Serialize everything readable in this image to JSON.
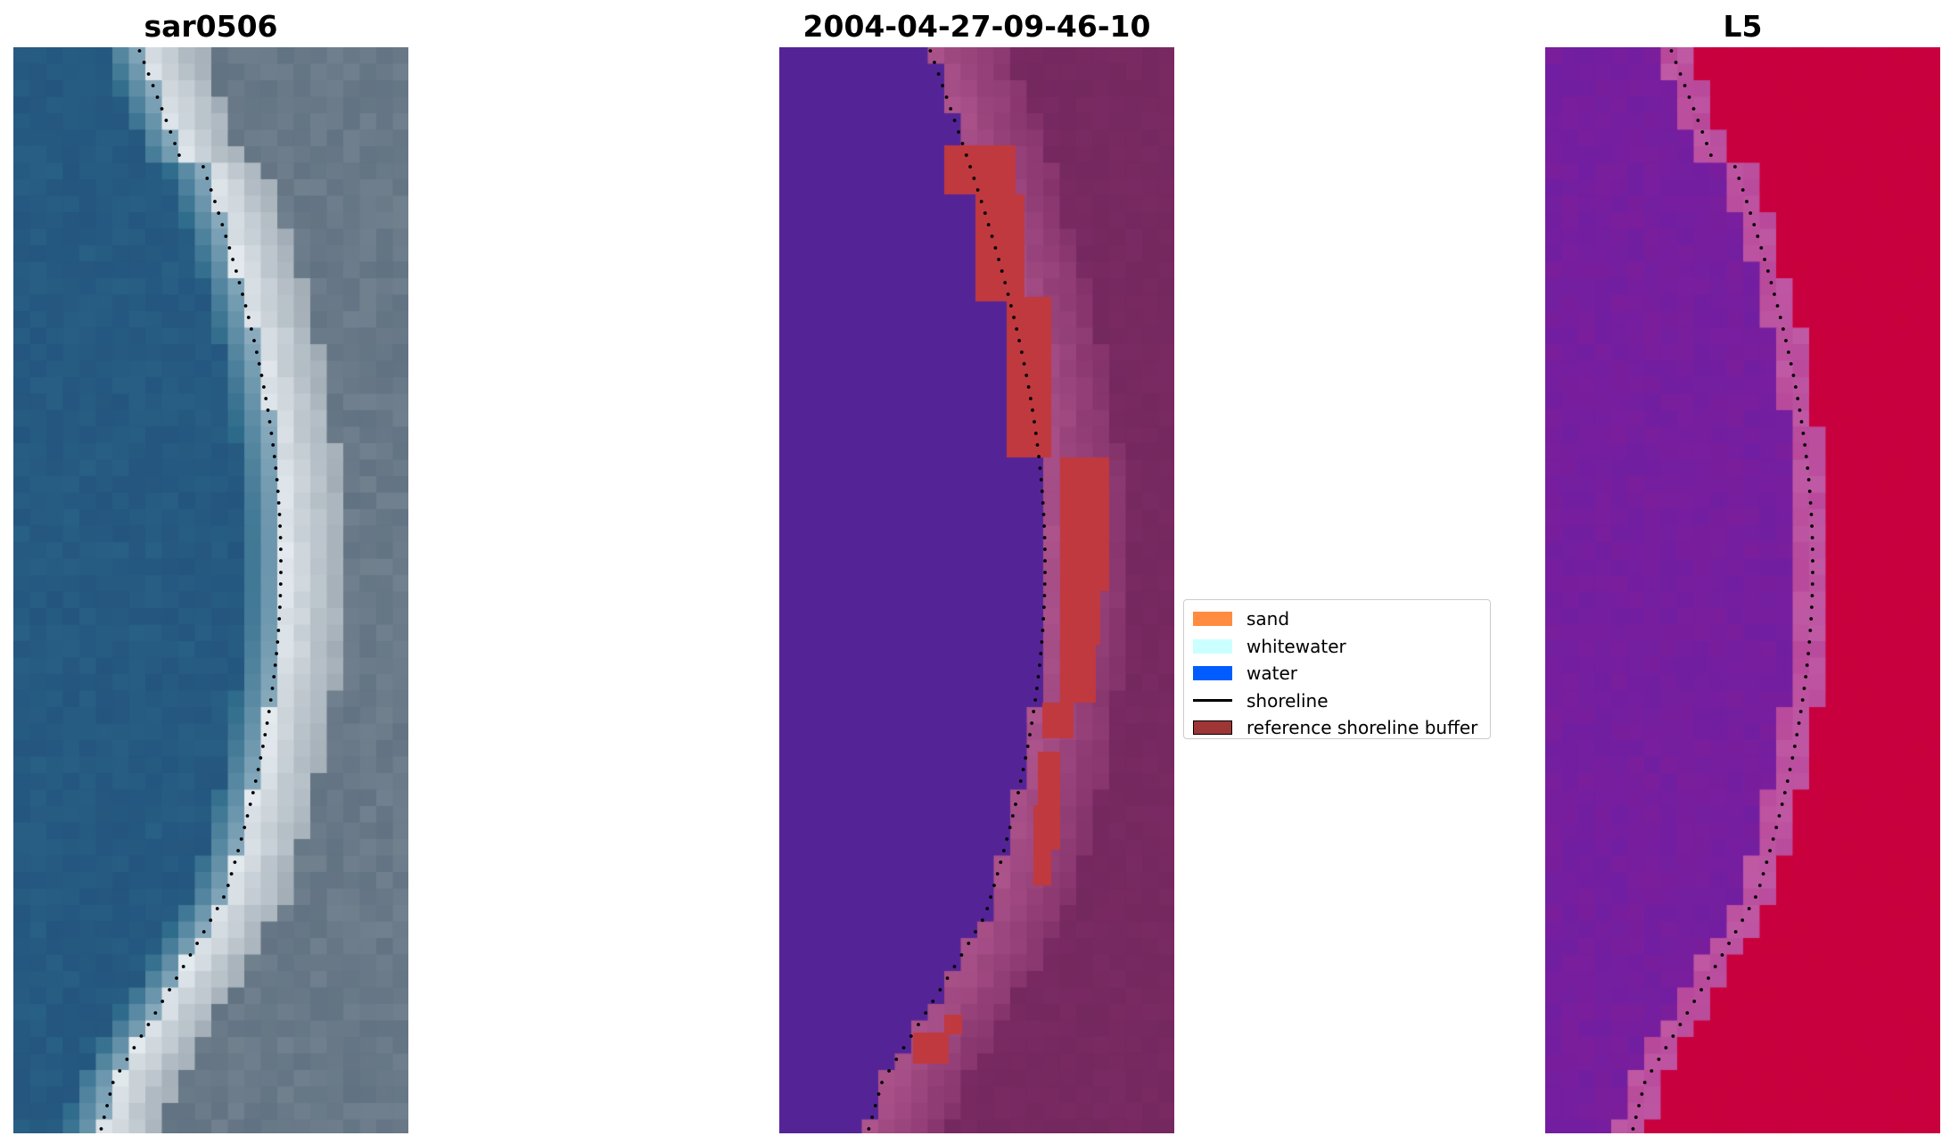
{
  "panels": [
    {
      "title": "sar0506",
      "type": "rgb-image"
    },
    {
      "title": "2004-04-27-09-46-10",
      "type": "classified-image"
    },
    {
      "title": "L5",
      "type": "index-image"
    }
  ],
  "legend": {
    "items": [
      {
        "label": "sand",
        "color": "#ff8c40",
        "kind": "patch"
      },
      {
        "label": "whitewater",
        "color": "#ccffff",
        "kind": "patch"
      },
      {
        "label": "water",
        "color": "#005cff",
        "kind": "patch"
      },
      {
        "label": "shoreline",
        "color": "#000000",
        "kind": "line"
      },
      {
        "label": "reference shoreline buffer",
        "color": "#9e3636",
        "kind": "patch",
        "edge": "#000000"
      }
    ]
  },
  "colors": {
    "rgb_water_deep": "#1f4a78",
    "rgb_water": "#2d6a8a",
    "rgb_surf": "#e8eef2",
    "rgb_land": "#7c8a96",
    "class_water": "#542497",
    "class_land": "#7a2a62",
    "class_land_light": "#b0568f",
    "class_buffer": "#c0393f",
    "index_water": "#7a1e9c",
    "index_land": "#c8003c",
    "index_transition": "#b8489a"
  }
}
